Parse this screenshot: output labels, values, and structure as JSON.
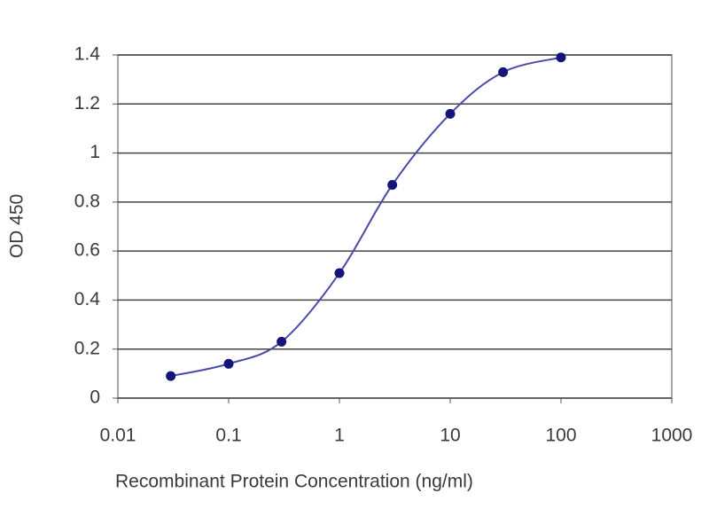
{
  "chart_data": {
    "type": "line",
    "xscale": "log",
    "x": [
      0.03,
      0.1,
      0.3,
      1,
      3,
      10,
      30,
      100
    ],
    "values": [
      0.09,
      0.14,
      0.23,
      0.51,
      0.87,
      1.16,
      1.33,
      1.39
    ],
    "color": "#14147a",
    "line_color": "#4a4aa8",
    "xlabel": "Recombinant Protein Concentration (ng/ml)",
    "ylabel": "OD 450",
    "xlim": [
      0.01,
      1000
    ],
    "xticks": [
      0.01,
      0.1,
      1,
      10,
      100,
      1000
    ],
    "ylim": [
      0,
      1.4
    ],
    "yticks": [
      0,
      0.2,
      0.4,
      0.6,
      0.8,
      1,
      1.2,
      1.4
    ],
    "grid": true
  }
}
